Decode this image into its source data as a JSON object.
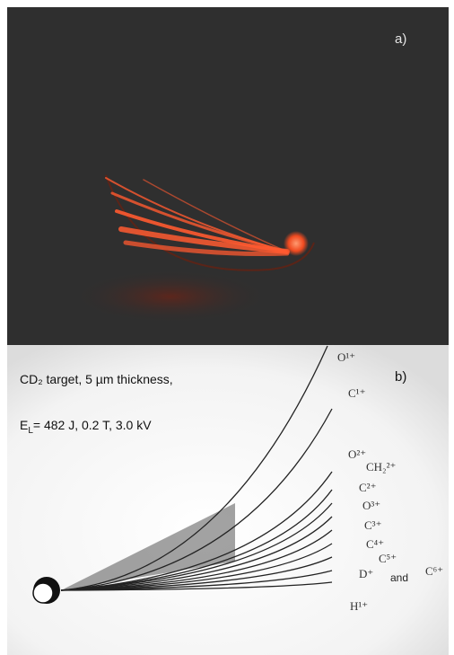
{
  "panel_a": {
    "label": "a)"
  },
  "panel_b": {
    "label": "b)",
    "caption_line1": "CD₂ target, 5 µm thickness,",
    "caption_line2": {
      "symbol": "E",
      "subscript": "L",
      "rest": "= 482 J, 0.2 T, 3.0 kV"
    },
    "ions": [
      "O¹⁺",
      "C¹⁺",
      "O²⁺",
      "CH₂²⁺",
      "C²⁺",
      "O³⁺",
      "C³⁺",
      "C⁴⁺",
      "C⁵⁺",
      "D⁺",
      "C⁶⁺",
      "H¹⁺"
    ],
    "connector": "and"
  }
}
